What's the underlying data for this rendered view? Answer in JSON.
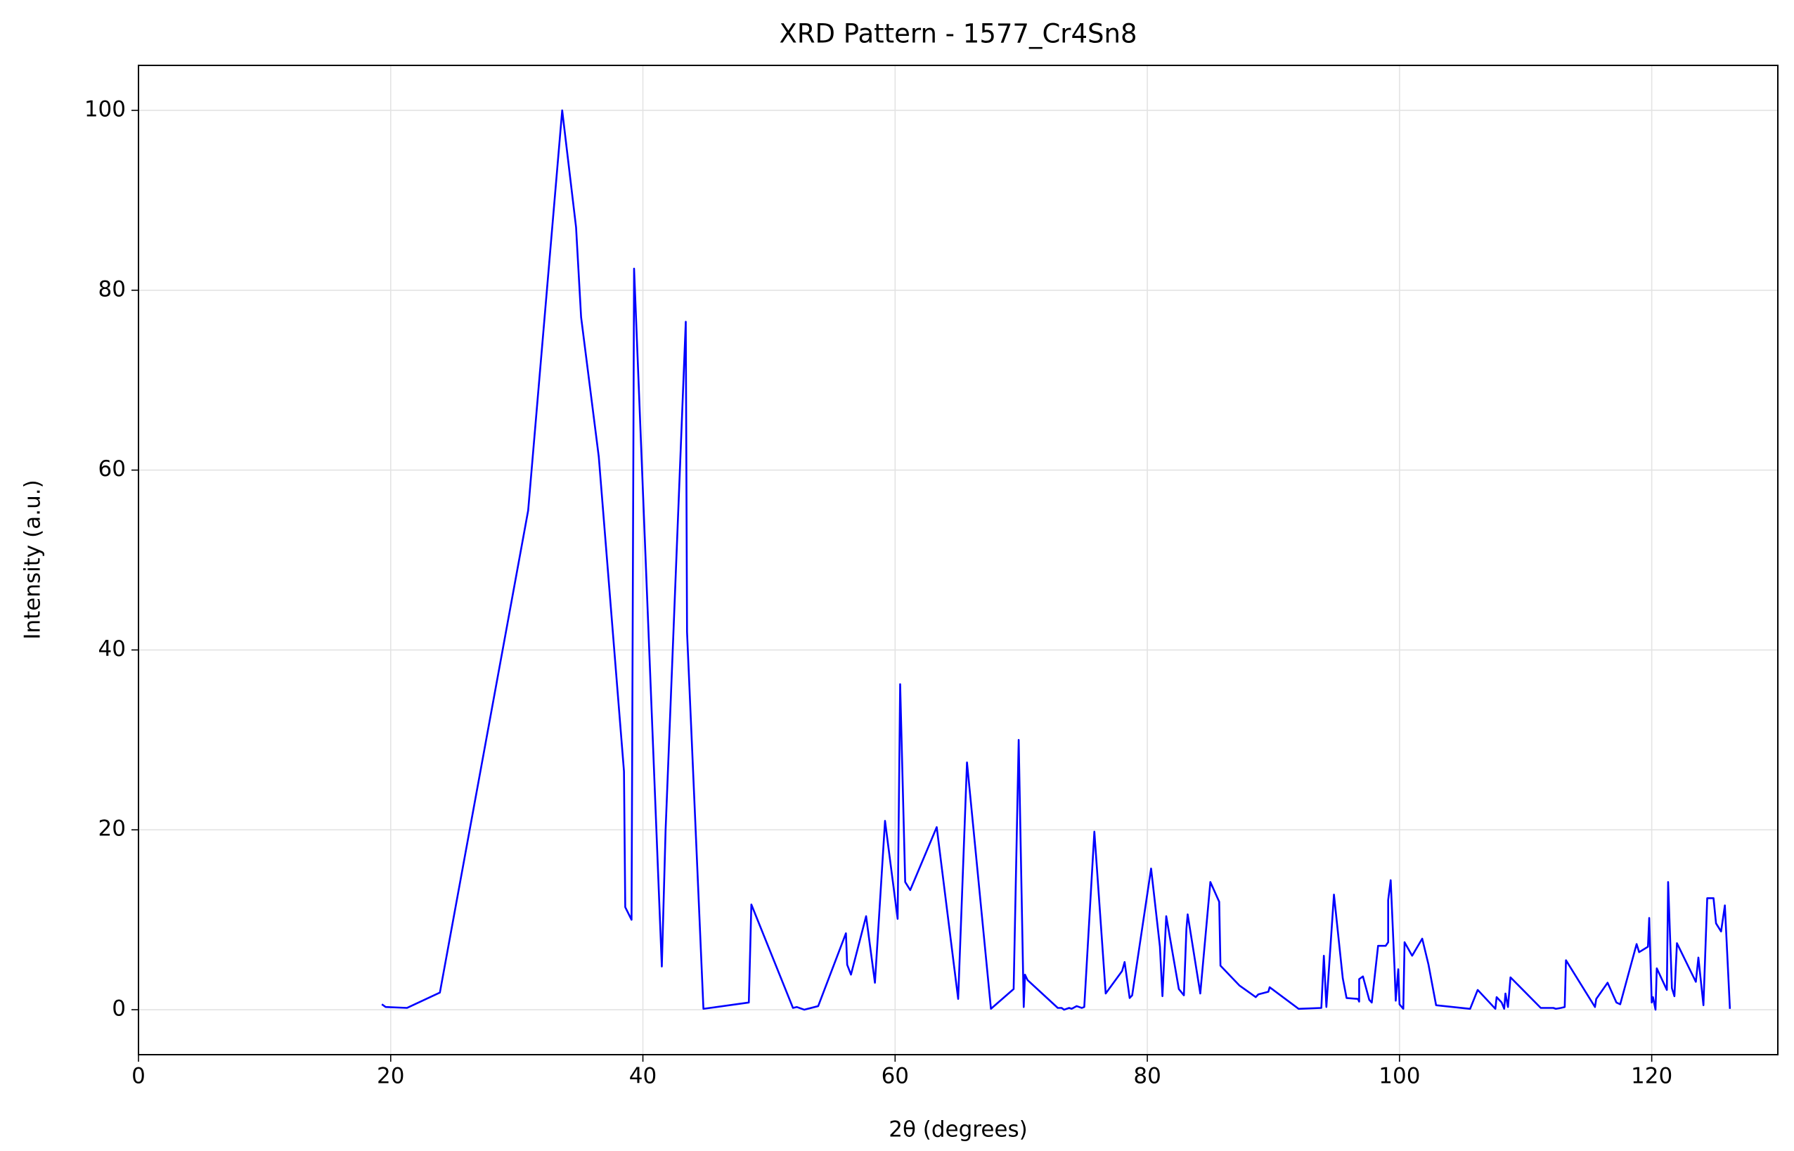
{
  "chart_data": {
    "type": "line",
    "title": "XRD Pattern - 1577_Cr4Sn8",
    "x_label": "2θ (degrees)",
    "y_label": "Intensity (a.u.)",
    "xlim": [
      0,
      130
    ],
    "ylim": [
      -5,
      105
    ],
    "xticks": [
      0,
      20,
      40,
      60,
      80,
      100,
      120
    ],
    "yticks": [
      0,
      20,
      40,
      60,
      80,
      100
    ],
    "grid": true,
    "series": [
      {
        "color": "#0000ff",
        "x": [
          19.3,
          19.6,
          21.3,
          23.9,
          30.9,
          33.6,
          34.7,
          35.1,
          36.5,
          38.5,
          38.6,
          39.1,
          39.3,
          41.5,
          41.8,
          43.4,
          43.5,
          44.8,
          48.4,
          48.6,
          51.9,
          52.2,
          52.8,
          53.9,
          56.1,
          56.2,
          56.5,
          57.7,
          58.4,
          59.2,
          60.2,
          60.4,
          60.8,
          61.2,
          63.3,
          65.0,
          65.7,
          67.6,
          69.4,
          69.8,
          70.2,
          70.3,
          70.5,
          72.9,
          73.2,
          73.4,
          73.8,
          74.0,
          74.4,
          74.8,
          75.0,
          75.8,
          76.7,
          78.0,
          78.2,
          78.6,
          78.8,
          80.3,
          81.0,
          81.2,
          81.5,
          82.5,
          82.9,
          83.1,
          83.2,
          84.2,
          85.0,
          85.7,
          85.8,
          87.3,
          88.6,
          88.8,
          89.6,
          89.7,
          92.0,
          93.8,
          94.0,
          94.2,
          94.8,
          95.5,
          95.8,
          96.7,
          96.8,
          96.8,
          97.1,
          97.6,
          97.8,
          98.3,
          98.9,
          99.1,
          99.1,
          99.3,
          99.6,
          99.7,
          99.9,
          100.0,
          100.3,
          100.4,
          101.0,
          101.8,
          102.3,
          102.9,
          105.6,
          106.2,
          107.6,
          107.7,
          108.1,
          108.3,
          108.4,
          108.6,
          108.8,
          111.2,
          112.2,
          112.4,
          112.8,
          113.1,
          113.2,
          115.5,
          115.6,
          116.5,
          117.2,
          117.5,
          118.8,
          119.0,
          119.7,
          119.8,
          120.0,
          120.1,
          120.3,
          120.4,
          121.2,
          121.3,
          121.6,
          121.8,
          122.0,
          123.5,
          123.7,
          124.1,
          124.4,
          124.9,
          125.1,
          125.5,
          125.8,
          126.2
        ],
        "values": [
          0.6,
          0.3,
          0.2,
          1.9,
          55.5,
          100,
          87,
          77,
          61.5,
          26.5,
          11.4,
          10,
          82.4,
          4.8,
          20,
          76.5,
          42,
          0.1,
          0.8,
          11.7,
          0.2,
          0.3,
          0,
          0.4,
          8.5,
          5,
          3.9,
          10.4,
          3,
          21,
          10.1,
          36.2,
          14.2,
          13.3,
          20.3,
          1.2,
          27.5,
          0.1,
          2.3,
          30,
          0.3,
          3.9,
          3.3,
          0.2,
          0.2,
          0,
          0.2,
          0.1,
          0.4,
          0.2,
          0.3,
          19.8,
          1.8,
          4.3,
          5.3,
          1.3,
          1.6,
          15.7,
          7,
          1.5,
          10.4,
          2.3,
          1.6,
          9,
          10.6,
          1.8,
          14.2,
          12,
          4.9,
          2.7,
          1.4,
          1.7,
          2,
          2.5,
          0.1,
          0.2,
          6,
          0.3,
          12.8,
          3.5,
          1.3,
          1.2,
          0.9,
          3.4,
          3.7,
          1.1,
          0.8,
          7.1,
          7.1,
          7.5,
          12.2,
          14.4,
          4.8,
          1,
          4.5,
          0.6,
          0.1,
          7.5,
          6,
          7.9,
          5,
          0.5,
          0.1,
          2.2,
          0.1,
          1.4,
          0.8,
          0.1,
          1.8,
          0.3,
          3.6,
          0.2,
          0.2,
          0.1,
          0.2,
          0.3,
          5.5,
          0.3,
          1.2,
          3,
          0.8,
          0.6,
          7.3,
          6.4,
          7,
          10.2,
          0.8,
          1.4,
          0,
          4.6,
          2.2,
          14.2,
          2.4,
          1.5,
          7.4,
          3.1,
          5.8,
          0.5,
          12.4,
          12.4,
          9.6,
          8.7,
          11.6,
          0.1
        ]
      }
    ]
  }
}
